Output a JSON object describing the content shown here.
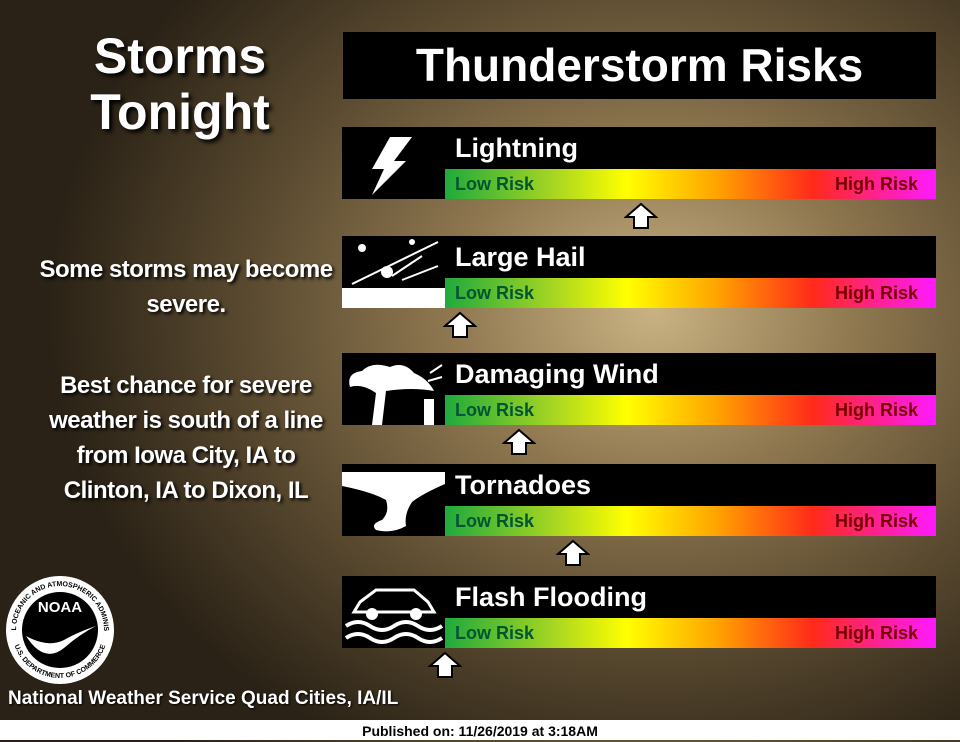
{
  "header": {
    "title": "Storms Tonight",
    "banner": "Thunderstorm Risks"
  },
  "notes": [
    "Some storms may become severe.",
    "Best chance for severe weather is south of a line from Iowa City, IA to Clinton, IA to Dixon, IL"
  ],
  "risk_scale": {
    "range": [
      0,
      1
    ],
    "low_label": "Low Risk",
    "high_label": "High Risk"
  },
  "risks": [
    {
      "name": "Lightning",
      "level": 0.4
    },
    {
      "name": "Large Hail",
      "level": 0.03
    },
    {
      "name": "Damaging Wind",
      "level": 0.15
    },
    {
      "name": "Tornadoes",
      "level": 0.26
    },
    {
      "name": "Flash Flooding",
      "level": 0.0
    }
  ],
  "logo": {
    "name": "NOAA",
    "ring_top": "NATIONAL OCEANIC AND ATMOSPHERIC ADMINISTRATION",
    "ring_bottom": "U.S. DEPARTMENT OF COMMERCE"
  },
  "footer": {
    "office": "National Weather Service Quad Cities, IA/IL",
    "published": "Published on: 11/26/2019 at 3:18AM"
  }
}
